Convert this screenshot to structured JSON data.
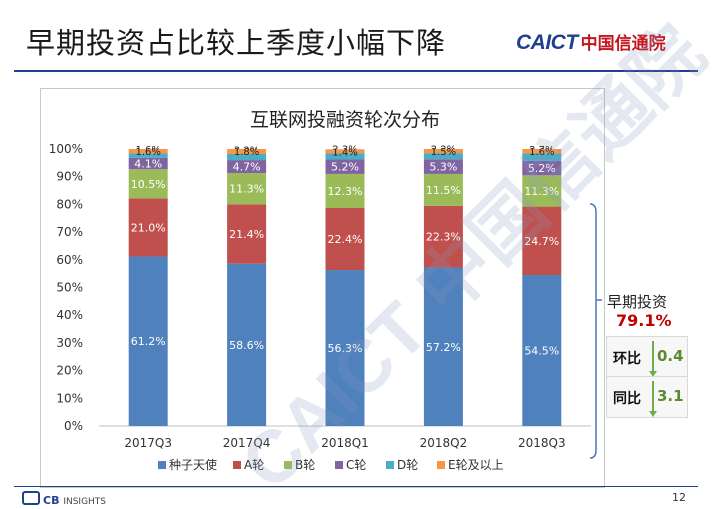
{
  "slide": {
    "title": "早期投资占比较上季度小幅下降",
    "brand_en": "CAICT",
    "brand_cn": "中国信通院",
    "watermark": "CAICT 中国信通院",
    "page_number": "12",
    "footer_logo": "CB",
    "footer_logo_sub": "INSIGHTS"
  },
  "side_panel": {
    "label": "早期投资",
    "value": "79.1%",
    "metrics": [
      {
        "label": "环比",
        "value": "0.4"
      },
      {
        "label": "同比",
        "value": "3.1"
      }
    ]
  },
  "colors": {
    "brand_blue": "#1f3f8f",
    "highlight_red": "#c00000",
    "metric_green": "#70ad47"
  },
  "chart_data": {
    "type": "bar",
    "stacked": true,
    "title": "互联网投融资轮次分布",
    "categories": [
      "2017Q3",
      "2017Q4",
      "2018Q1",
      "2018Q2",
      "2018Q3"
    ],
    "series": [
      {
        "name": "种子天使",
        "color": "#4f81bd",
        "values": [
          61.2,
          58.6,
          56.3,
          57.2,
          54.5
        ],
        "labels": [
          "61.2%",
          "58.6%",
          "56.3%",
          "57.2%",
          "54.5%"
        ]
      },
      {
        "name": "A轮",
        "color": "#c0504d",
        "values": [
          21.0,
          21.4,
          22.4,
          22.3,
          24.7
        ],
        "labels": [
          "21.0%",
          "21.4%",
          "22.4%",
          "22.3%",
          "24.7%"
        ]
      },
      {
        "name": "B轮",
        "color": "#9bbb59",
        "values": [
          10.5,
          11.3,
          12.3,
          11.5,
          11.3
        ],
        "labels": [
          "10.5%",
          "11.3%",
          "12.3%",
          "11.5%",
          "11.3%"
        ]
      },
      {
        "name": "C轮",
        "color": "#8064a2",
        "values": [
          4.1,
          4.7,
          5.2,
          5.3,
          5.2
        ],
        "labels": [
          "4.1%",
          "4.7%",
          "5.2%",
          "5.3%",
          "5.2%"
        ]
      },
      {
        "name": "D轮",
        "color": "#4bacc6",
        "values": [
          1.6,
          2.2,
          2.3,
          2.2,
          2.7
        ],
        "labels": [
          "1.6%",
          "2.2%",
          "2.3%",
          "2.2%",
          "2.7%"
        ]
      },
      {
        "name": "E轮及以上",
        "color": "#f79646",
        "values": [
          1.6,
          1.8,
          1.4,
          1.5,
          1.6
        ],
        "labels": [
          "1.6%",
          "1.8%",
          "1.4%",
          "1.5%",
          "1.6%"
        ]
      }
    ],
    "y_ticks": [
      "0%",
      "10%",
      "20%",
      "30%",
      "40%",
      "50%",
      "60%",
      "70%",
      "80%",
      "90%",
      "100%"
    ],
    "ylim": [
      0,
      100
    ],
    "grid": false,
    "legend_position": "bottom"
  }
}
